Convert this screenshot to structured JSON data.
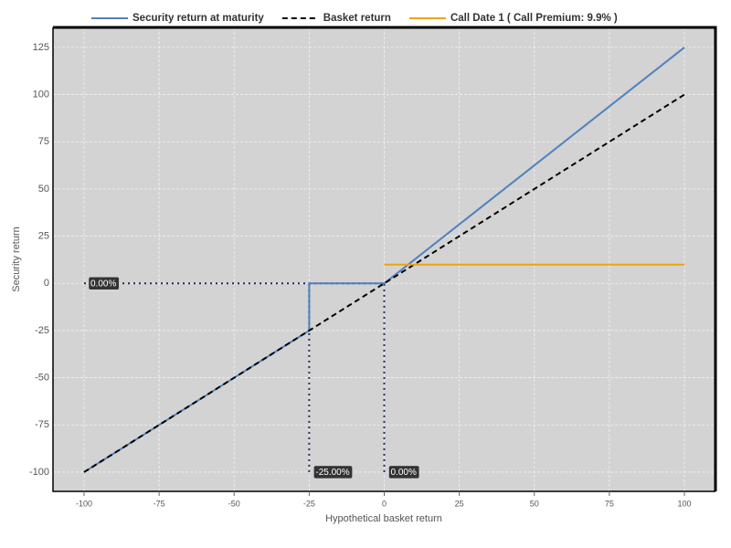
{
  "chart_data": {
    "type": "line",
    "x_label": "Hypothetical basket return",
    "y_label": "Security return",
    "xlim": [
      -110.35,
      110.35
    ],
    "ylim": [
      -110.2,
      135.6
    ],
    "xticks": [
      -100,
      -75,
      -50,
      -25,
      0,
      25,
      50,
      75,
      100
    ],
    "yticks": [
      -100,
      -75,
      -50,
      -25,
      0,
      25,
      50,
      75,
      100,
      125
    ],
    "grid": true,
    "legend": "top",
    "series": [
      {
        "name": "Security return at maturity",
        "color": "#4f81bd",
        "dash": "solid",
        "x": [
          -100,
          -25,
          -25,
          0,
          100
        ],
        "values": [
          -100,
          -25,
          0,
          0,
          125
        ]
      },
      {
        "name": "Basket return",
        "color": "#000000",
        "dash": "dashed",
        "x": [
          -100,
          100
        ],
        "values": [
          -100,
          100
        ]
      },
      {
        "name": "Call Date 1 ( Call Premium: 9.9% )",
        "color": "#f0a30a",
        "dash": "solid",
        "x": [
          0,
          100
        ],
        "values": [
          9.9,
          9.9
        ]
      }
    ],
    "annotations": [
      {
        "label": "0.00%",
        "x": -100,
        "y": 0,
        "line_to": [
          0,
          0
        ]
      },
      {
        "label": "-25.00%",
        "x": -25,
        "y": -100,
        "line_to": [
          -25,
          0
        ]
      },
      {
        "label": "0.00%",
        "x": 0,
        "y": -100,
        "line_to": [
          0,
          0
        ]
      }
    ]
  }
}
